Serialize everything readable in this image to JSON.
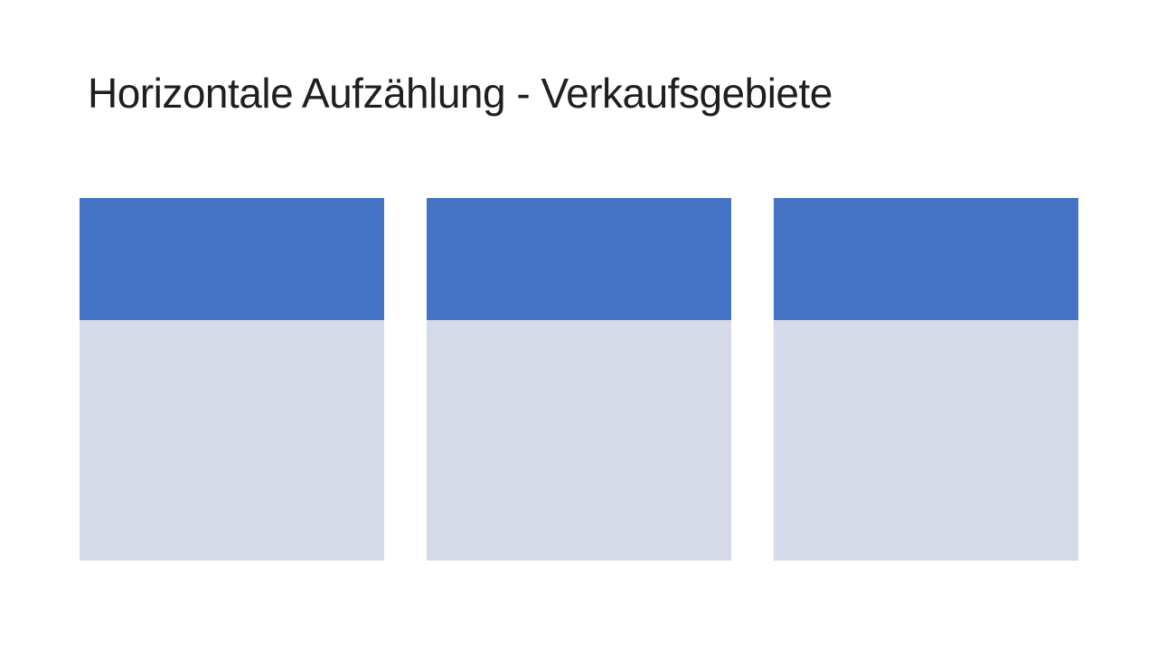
{
  "slide": {
    "title": "Horizontale Aufzählung - Verkaufsgebiete"
  },
  "cards": [
    {
      "name": "verkaufsgebiet-card-1"
    },
    {
      "name": "verkaufsgebiet-card-2"
    },
    {
      "name": "verkaufsgebiet-card-3"
    }
  ],
  "colors": {
    "slide_background": "#FFFFFF",
    "title_text": "#1F1F1F",
    "card_header": "#4472C4",
    "card_body": "#D5D9E8"
  }
}
